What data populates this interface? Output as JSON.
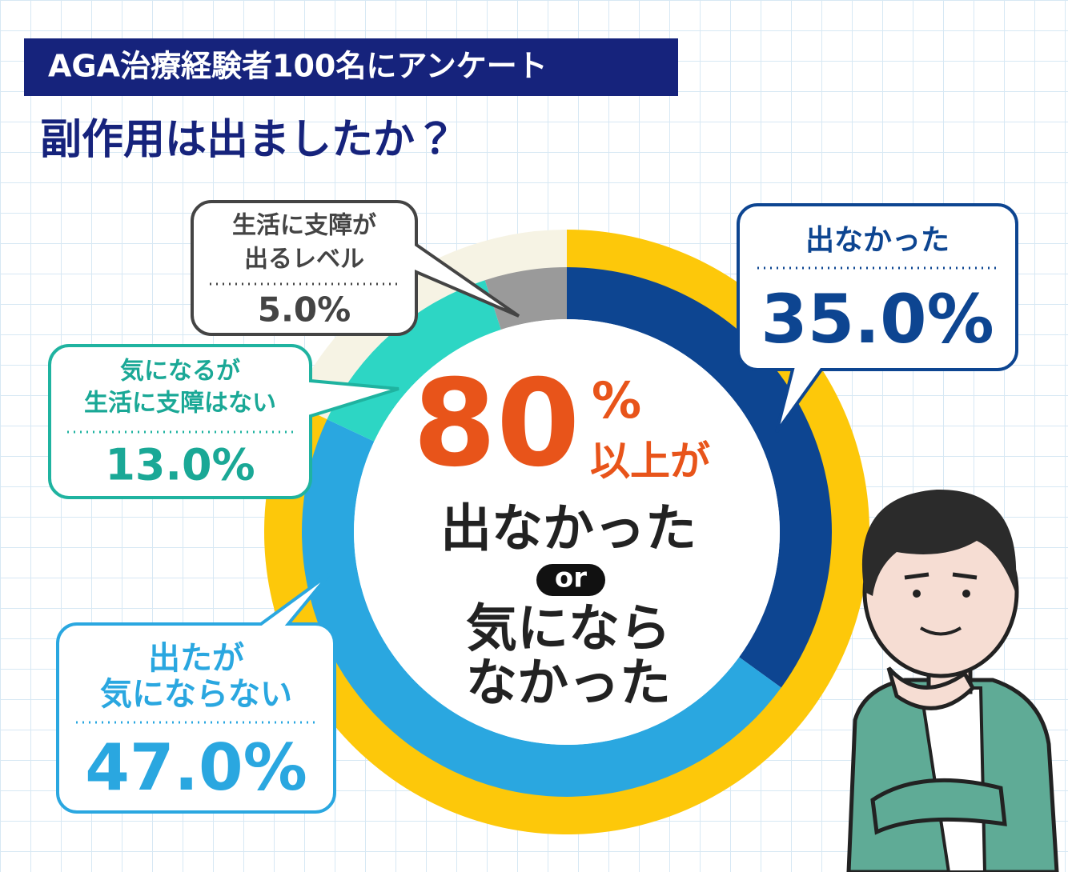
{
  "chart_data": {
    "type": "donut",
    "header": "AGA治療経験者100名にアンケート",
    "title": "副作用は出ましたか？",
    "categories": [
      [
        "出なかった"
      ],
      [
        "出たが",
        "気にならない"
      ],
      [
        "気になるが",
        "生活に支障はない"
      ],
      [
        "生活に支障が",
        "出るレベル"
      ]
    ],
    "values": [
      35,
      47,
      13,
      5
    ],
    "value_labels": [
      "35.0%",
      "47.0%",
      "13.0%",
      "5.0%"
    ],
    "colors": [
      "#0d4591",
      "#2aa7e0",
      "#2dd6c4",
      "#9a9a9a"
    ],
    "outer_ring": {
      "color": "#fdc80a",
      "rest_color": "#f6f3e4"
    },
    "center": {
      "number": "80",
      "unit": "%",
      "suffix": "以上が",
      "line1": "出なかった",
      "or": "or",
      "line2": "気になら",
      "line3": "なかった"
    }
  }
}
